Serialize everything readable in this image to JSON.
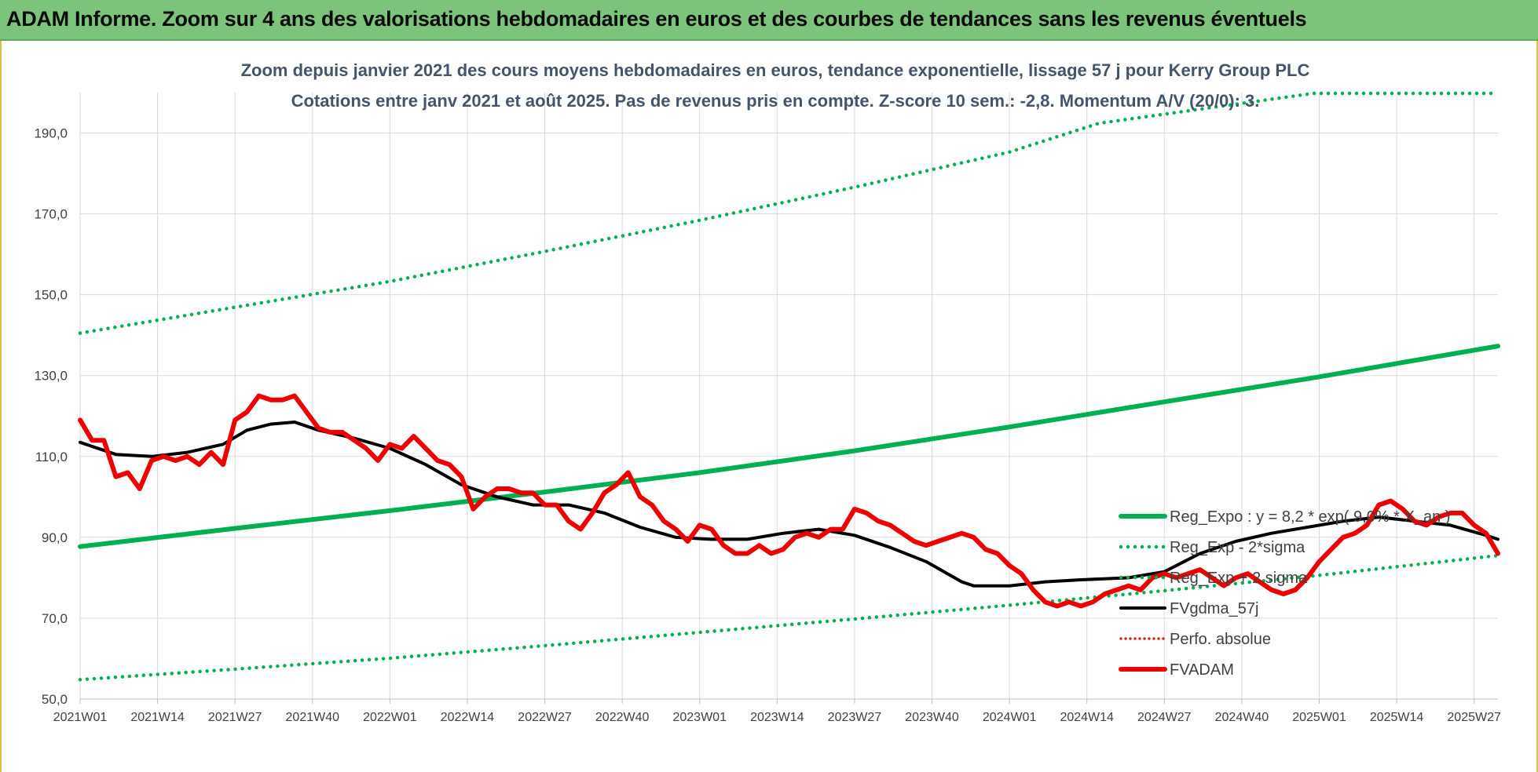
{
  "banner": {
    "title": "ADAM Informe. Zoom sur 4 ans des valorisations hebdomadaires en euros et des courbes de tendances sans les revenus éventuels"
  },
  "colors": {
    "trend_green": "#00b050",
    "fvadam_red": "#ee0000",
    "fvgdma_black": "#000000",
    "perfo_red": "#e02020",
    "banner_green": "#7cc47a",
    "subtitle_text": "#44546a"
  },
  "chart_data": {
    "type": "line",
    "title_lines": [
      "Zoom depuis janvier 2021 des cours moyens hebdomadaires en euros, tendance exponentielle, lissage 57 j pour Kerry Group PLC",
      "Cotations entre janv 2021 et août 2025.  Pas de revenus pris en compte. Z-score 10 sem.: -2,8. Momentum A/V (20/0): 3."
    ],
    "xlabel": "",
    "ylabel": "",
    "ylim": [
      50,
      200
    ],
    "yticks": [
      "50,0",
      "70,0",
      "90,0",
      "110,0",
      "130,0",
      "150,0",
      "170,0",
      "190,0"
    ],
    "ytick_values": [
      50,
      70,
      90,
      110,
      130,
      150,
      170,
      190
    ],
    "xlim_weeks": [
      0,
      238
    ],
    "xticks": [
      "2021W01",
      "2021W14",
      "2021W27",
      "2021W40",
      "2022W01",
      "2022W14",
      "2022W27",
      "2022W40",
      "2023W01",
      "2023W14",
      "2023W27",
      "2023W40",
      "2024W01",
      "2024W14",
      "2024W27",
      "2024W40",
      "2025W01",
      "2025W14",
      "2025W27"
    ],
    "xtick_week_index": [
      0,
      13,
      26,
      39,
      52,
      65,
      78,
      91,
      104,
      117,
      130,
      143,
      156,
      169,
      182,
      195,
      208,
      221,
      234
    ],
    "grid": "vertical and horizontal",
    "legend_position": "bottom-right",
    "legend": [
      {
        "label": "Reg_Expo : y = 8,2 * exp( 9,0% * X_an )",
        "style": "solid-thick",
        "color": "#00b050"
      },
      {
        "label": "Reg_Exp - 2*sigma",
        "style": "dotted",
        "color": "#00b050"
      },
      {
        "label": "Reg_Exp + 2 sigma",
        "style": "dotted",
        "color": "#00b050"
      },
      {
        "label": "FVgdma_57j",
        "style": "solid",
        "color": "#000000"
      },
      {
        "label": "Perfo. absolue",
        "style": "dotted",
        "color": "#e02020"
      },
      {
        "label": "FVADAM",
        "style": "solid-thick",
        "color": "#ee0000"
      }
    ],
    "series": [
      {
        "name": "Reg_Expo : y = 8,2 * exp( 9,0% * X_an )",
        "x_week": [
          0,
          26,
          52,
          78,
          104,
          130,
          156,
          182,
          208,
          238
        ],
        "values": [
          87.7,
          92.2,
          96.6,
          101.2,
          106.0,
          111.4,
          117.3,
          123.5,
          129.7,
          137.3
        ]
      },
      {
        "name": "Reg_Exp - 2*sigma",
        "x_week": [
          0,
          26,
          52,
          78,
          104,
          130,
          156,
          182,
          208,
          238
        ],
        "values": [
          54.8,
          57.4,
          60.1,
          63.2,
          66.5,
          69.8,
          73.2,
          76.8,
          80.6,
          85.5
        ]
      },
      {
        "name": "Reg_Exp + 2 sigma",
        "x_week": [
          0,
          26,
          52,
          78,
          104,
          130,
          156,
          171,
          207,
          238
        ],
        "values": [
          140.5,
          146.9,
          153.3,
          160.7,
          168.4,
          176.6,
          185.3,
          192.4,
          199.8,
          199.8
        ]
      },
      {
        "name": "FVgdma_57j",
        "x_week": [
          0,
          6,
          12,
          18,
          24,
          28,
          32,
          36,
          40,
          46,
          52,
          58,
          64,
          70,
          76,
          82,
          88,
          94,
          100,
          106,
          112,
          118,
          124,
          130,
          136,
          142,
          148,
          150,
          156,
          162,
          168,
          176,
          182,
          188,
          194,
          200,
          206,
          212,
          218,
          224,
          230,
          236,
          238
        ],
        "values": [
          113.5,
          110.5,
          110.0,
          111.0,
          113.0,
          116.5,
          118.0,
          118.5,
          116.5,
          114.5,
          112.0,
          108.0,
          103.0,
          100.0,
          98.0,
          98.0,
          96.0,
          92.5,
          90.0,
          89.5,
          89.5,
          91.0,
          92.0,
          90.5,
          87.5,
          84.0,
          79.0,
          78.0,
          78.0,
          79.0,
          79.5,
          80.0,
          81.5,
          86.0,
          89.0,
          91.0,
          92.5,
          94.0,
          95.0,
          94.0,
          93.0,
          90.5,
          89.5
        ]
      },
      {
        "name": "FVADAM",
        "x_week": [
          0,
          2,
          4,
          6,
          8,
          10,
          12,
          14,
          16,
          18,
          20,
          22,
          24,
          26,
          28,
          30,
          32,
          34,
          36,
          38,
          40,
          42,
          44,
          46,
          48,
          50,
          52,
          54,
          56,
          58,
          60,
          62,
          64,
          66,
          68,
          70,
          72,
          74,
          76,
          78,
          80,
          82,
          84,
          86,
          88,
          90,
          92,
          94,
          96,
          98,
          100,
          102,
          104,
          106,
          108,
          110,
          112,
          114,
          116,
          118,
          120,
          122,
          124,
          126,
          128,
          130,
          132,
          134,
          136,
          138,
          140,
          142,
          144,
          146,
          148,
          150,
          152,
          154,
          156,
          158,
          160,
          162,
          164,
          166,
          168,
          170,
          172,
          174,
          176,
          178,
          180,
          182,
          184,
          186,
          188,
          190,
          192,
          194,
          196,
          198,
          200,
          202,
          204,
          206,
          208,
          210,
          212,
          214,
          216,
          218,
          220,
          222,
          224,
          226,
          228,
          230,
          232,
          234,
          236,
          238
        ],
        "values": [
          119,
          114,
          114,
          105,
          106,
          102,
          109,
          110,
          109,
          110,
          108,
          111,
          108,
          119,
          121,
          125,
          124,
          124,
          125,
          121,
          117,
          116,
          116,
          114,
          112,
          109,
          113,
          112,
          115,
          112,
          109,
          108,
          105,
          97,
          100,
          102,
          102,
          101,
          101,
          98,
          98,
          94,
          92,
          96,
          101,
          103,
          106,
          100,
          98,
          94,
          92,
          89,
          93,
          92,
          88,
          86,
          86,
          88,
          86,
          87,
          90,
          91,
          90,
          92,
          92,
          97,
          96,
          94,
          93,
          91,
          89,
          88,
          89,
          90,
          91,
          90,
          87,
          86,
          83,
          81,
          77,
          74,
          73,
          74,
          73,
          74,
          76,
          77,
          78,
          77,
          80,
          81,
          80,
          81,
          82,
          80,
          78,
          80,
          81,
          79,
          77,
          76,
          77,
          80,
          84,
          87,
          90,
          91,
          93,
          98,
          99,
          97,
          94,
          93,
          95,
          96,
          96,
          93,
          91,
          86
        ]
      }
    ]
  }
}
